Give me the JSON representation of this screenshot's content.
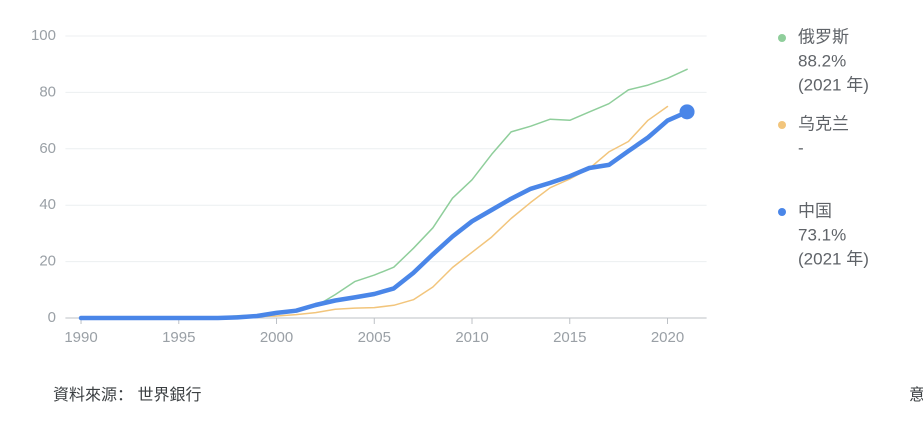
{
  "chart_data": {
    "type": "line",
    "x": [
      1990,
      1991,
      1992,
      1993,
      1994,
      1995,
      1996,
      1997,
      1998,
      1999,
      2000,
      2001,
      2002,
      2003,
      2004,
      2005,
      2006,
      2007,
      2008,
      2009,
      2010,
      2011,
      2012,
      2013,
      2014,
      2015,
      2016,
      2017,
      2018,
      2019,
      2020,
      2021
    ],
    "series": [
      {
        "name": "俄罗斯",
        "color": "#8fce9b",
        "legend_value": "88.2%",
        "legend_year": "(2021 年)",
        "values": [
          0,
          0,
          0,
          0,
          0,
          0,
          0,
          0.1,
          0.8,
          1,
          2,
          2.9,
          4.1,
          8.3,
          12.9,
          15.2,
          18,
          24.7,
          32,
          42.5,
          49,
          58,
          66,
          68,
          70.5,
          70.1,
          73.1,
          76,
          80.9,
          82.6,
          85,
          88.2
        ]
      },
      {
        "name": "乌克兰",
        "color": "#f2c57c",
        "legend_value": "-",
        "values": [
          0,
          0,
          0,
          0,
          0,
          0,
          0,
          0.1,
          0.4,
          0.5,
          0.7,
          1.2,
          1.9,
          3.1,
          3.5,
          3.7,
          4.5,
          6.5,
          11,
          17.9,
          23.3,
          28.7,
          35.3,
          41,
          46.2,
          49.3,
          53,
          58.9,
          62.6,
          70.1,
          75,
          null
        ]
      },
      {
        "name": "中国",
        "color": "#4a86e8",
        "legend_value": "73.1%",
        "legend_year": "(2021 年)",
        "highlight": true,
        "values": [
          0,
          0,
          0,
          0,
          0,
          0,
          0,
          0,
          0.2,
          0.7,
          1.8,
          2.6,
          4.6,
          6.2,
          7.3,
          8.5,
          10.5,
          16,
          22.6,
          28.9,
          34.3,
          38.3,
          42.3,
          45.8,
          47.9,
          50.3,
          53.2,
          54.3,
          59.2,
          64,
          70,
          73.1
        ]
      }
    ],
    "xlim": [
      1989.2,
      2022
    ],
    "xticks": [
      1990,
      1995,
      2000,
      2005,
      2010,
      2015,
      2020
    ],
    "ylim": [
      0,
      100
    ],
    "yticks": [
      0,
      20,
      40,
      60,
      80,
      100
    ],
    "grid": true,
    "source": "資料來源：  世界銀行",
    "corner_text": "意"
  }
}
